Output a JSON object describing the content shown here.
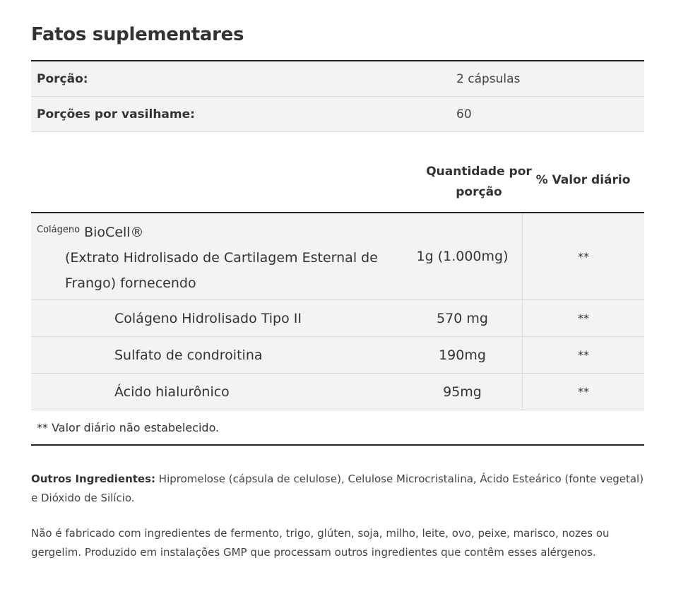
{
  "title": "Fatos suplementares",
  "serving": [
    {
      "label": "Porção:",
      "value": "2 cápsulas"
    },
    {
      "label": "Porções por vasilhame:",
      "value": "60"
    }
  ],
  "header": {
    "amount": "Quantidade por porção",
    "daily_value": "% Valor diário"
  },
  "main_ingredient": {
    "prefix": "Colágeno",
    "name": "BioCell®",
    "description": "(Extrato Hidrolisado de Cartilagem Esternal de Frango) fornecendo",
    "amount": "1g (1.000mg)",
    "dv": "**"
  },
  "sub_ingredients": [
    {
      "name": "Colágeno Hidrolisado Tipo II",
      "amount": "570 mg",
      "dv": "**"
    },
    {
      "name": "Sulfato de condroitina",
      "amount": "190mg",
      "dv": "**"
    },
    {
      "name": "Ácido hialurônico",
      "amount": "95mg",
      "dv": "**"
    }
  ],
  "footnote": "** Valor diário não estabelecido.",
  "other_ingredients": {
    "label": "Outros Ingredientes:",
    "text": " Hipromelose (cápsula de celulose), Celulose Microcristalina, Ácido Esteárico (fonte vegetal) e Dióxido de Silício."
  },
  "allergen_statement": "Não é fabricado com ingredientes de fermento, trigo, glúten, soja, milho, leite, ovo, peixe, marisco, nozes ou gergelim. Produzido em instalações GMP que processam outros ingredientes que contêm esses alérgenos."
}
